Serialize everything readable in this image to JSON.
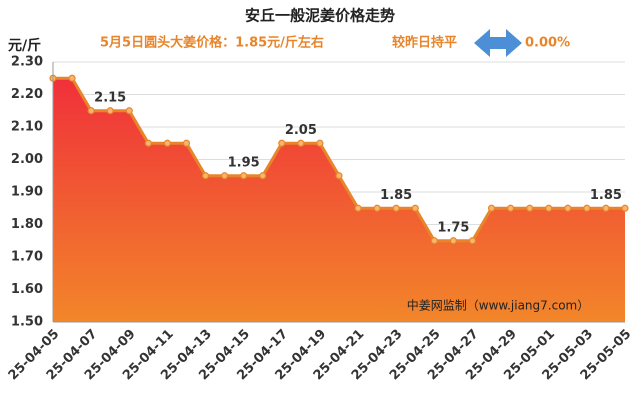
{
  "chart_data": {
    "type": "area",
    "title": "安丘一般泥姜价格走势",
    "subtitle": "5月5日圆头大姜价格：1.85元/斤左右",
    "change_text": "较昨日持平",
    "change_pct": "0.00%",
    "y_label": "元/斤",
    "watermark": "中姜网监制（www.jiang7.com）",
    "categories": [
      "25-04-05",
      null,
      "25-04-07",
      null,
      "25-04-09",
      null,
      "25-04-11",
      null,
      "25-04-13",
      null,
      "25-04-15",
      null,
      "25-04-17",
      null,
      "25-04-19",
      null,
      "25-04-21",
      null,
      "25-04-23",
      null,
      "25-04-25",
      null,
      "25-04-27",
      null,
      "25-04-29",
      null,
      "25-05-01",
      null,
      "25-05-03",
      null,
      "25-05-05"
    ],
    "values": [
      2.25,
      2.25,
      2.15,
      2.15,
      2.15,
      2.05,
      2.05,
      2.05,
      1.95,
      1.95,
      1.95,
      1.95,
      2.05,
      2.05,
      2.05,
      1.95,
      1.85,
      1.85,
      1.85,
      1.85,
      1.75,
      1.75,
      1.75,
      1.85,
      1.85,
      1.85,
      1.85,
      1.85,
      1.85,
      1.85,
      1.85
    ],
    "value_labels": [
      null,
      null,
      null,
      "2.15",
      null,
      null,
      null,
      null,
      null,
      null,
      "1.95",
      null,
      null,
      "2.05",
      null,
      null,
      null,
      null,
      "1.85",
      null,
      null,
      "1.75",
      null,
      null,
      null,
      null,
      null,
      null,
      null,
      "1.85",
      null
    ],
    "color": "#e8852a",
    "ylim": [
      1.5,
      2.3
    ],
    "yticks": [
      {
        "value": 1.5,
        "label": "1.50"
      },
      {
        "value": 1.6,
        "label": "1.60"
      },
      {
        "value": 1.7,
        "label": "1.70"
      },
      {
        "value": 1.8,
        "label": "1.80"
      },
      {
        "value": 1.9,
        "label": "1.90"
      },
      {
        "value": 2.0,
        "label": "2.00"
      },
      {
        "value": 2.1,
        "label": "2.10"
      },
      {
        "value": 2.2,
        "label": "2.20"
      },
      {
        "value": 2.3,
        "label": "2.30"
      }
    ],
    "grid": true
  }
}
